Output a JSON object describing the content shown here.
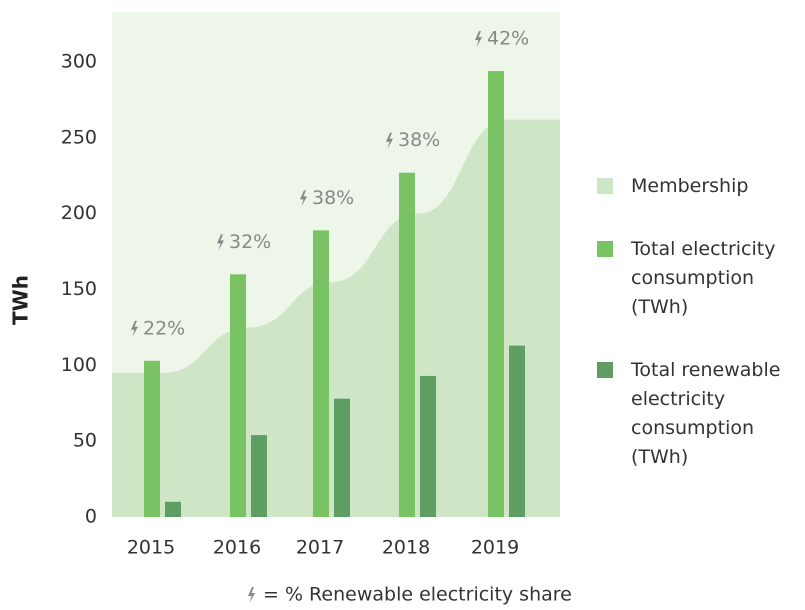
{
  "chart_data": {
    "type": "bar",
    "y_label": "TWh",
    "categories": [
      "2015",
      "2016",
      "2017",
      "2018",
      "2019"
    ],
    "membership": {
      "name": "Membership",
      "color": "#cfe6c6",
      "values": [
        95,
        125,
        155,
        200,
        262
      ]
    },
    "series": [
      {
        "name": "Total electricity consumption (TWh)",
        "color": "#79c365",
        "values": [
          103,
          160,
          189,
          227,
          294
        ]
      },
      {
        "name": "Total renewable electricity consumption (TWh)",
        "color": "#5f9e62",
        "values": [
          10,
          54,
          78,
          93,
          113
        ]
      }
    ],
    "share": {
      "values": [
        22,
        32,
        38,
        38,
        42
      ],
      "value_labels": [
        "22%",
        "32%",
        "38%",
        "38%",
        "42%"
      ]
    },
    "footnote": "= % Renewable electricity share",
    "ylim": [
      0,
      300
    ],
    "yticks": [
      0,
      50,
      100,
      150,
      200,
      250,
      300
    ],
    "background": "#eef6ea"
  }
}
